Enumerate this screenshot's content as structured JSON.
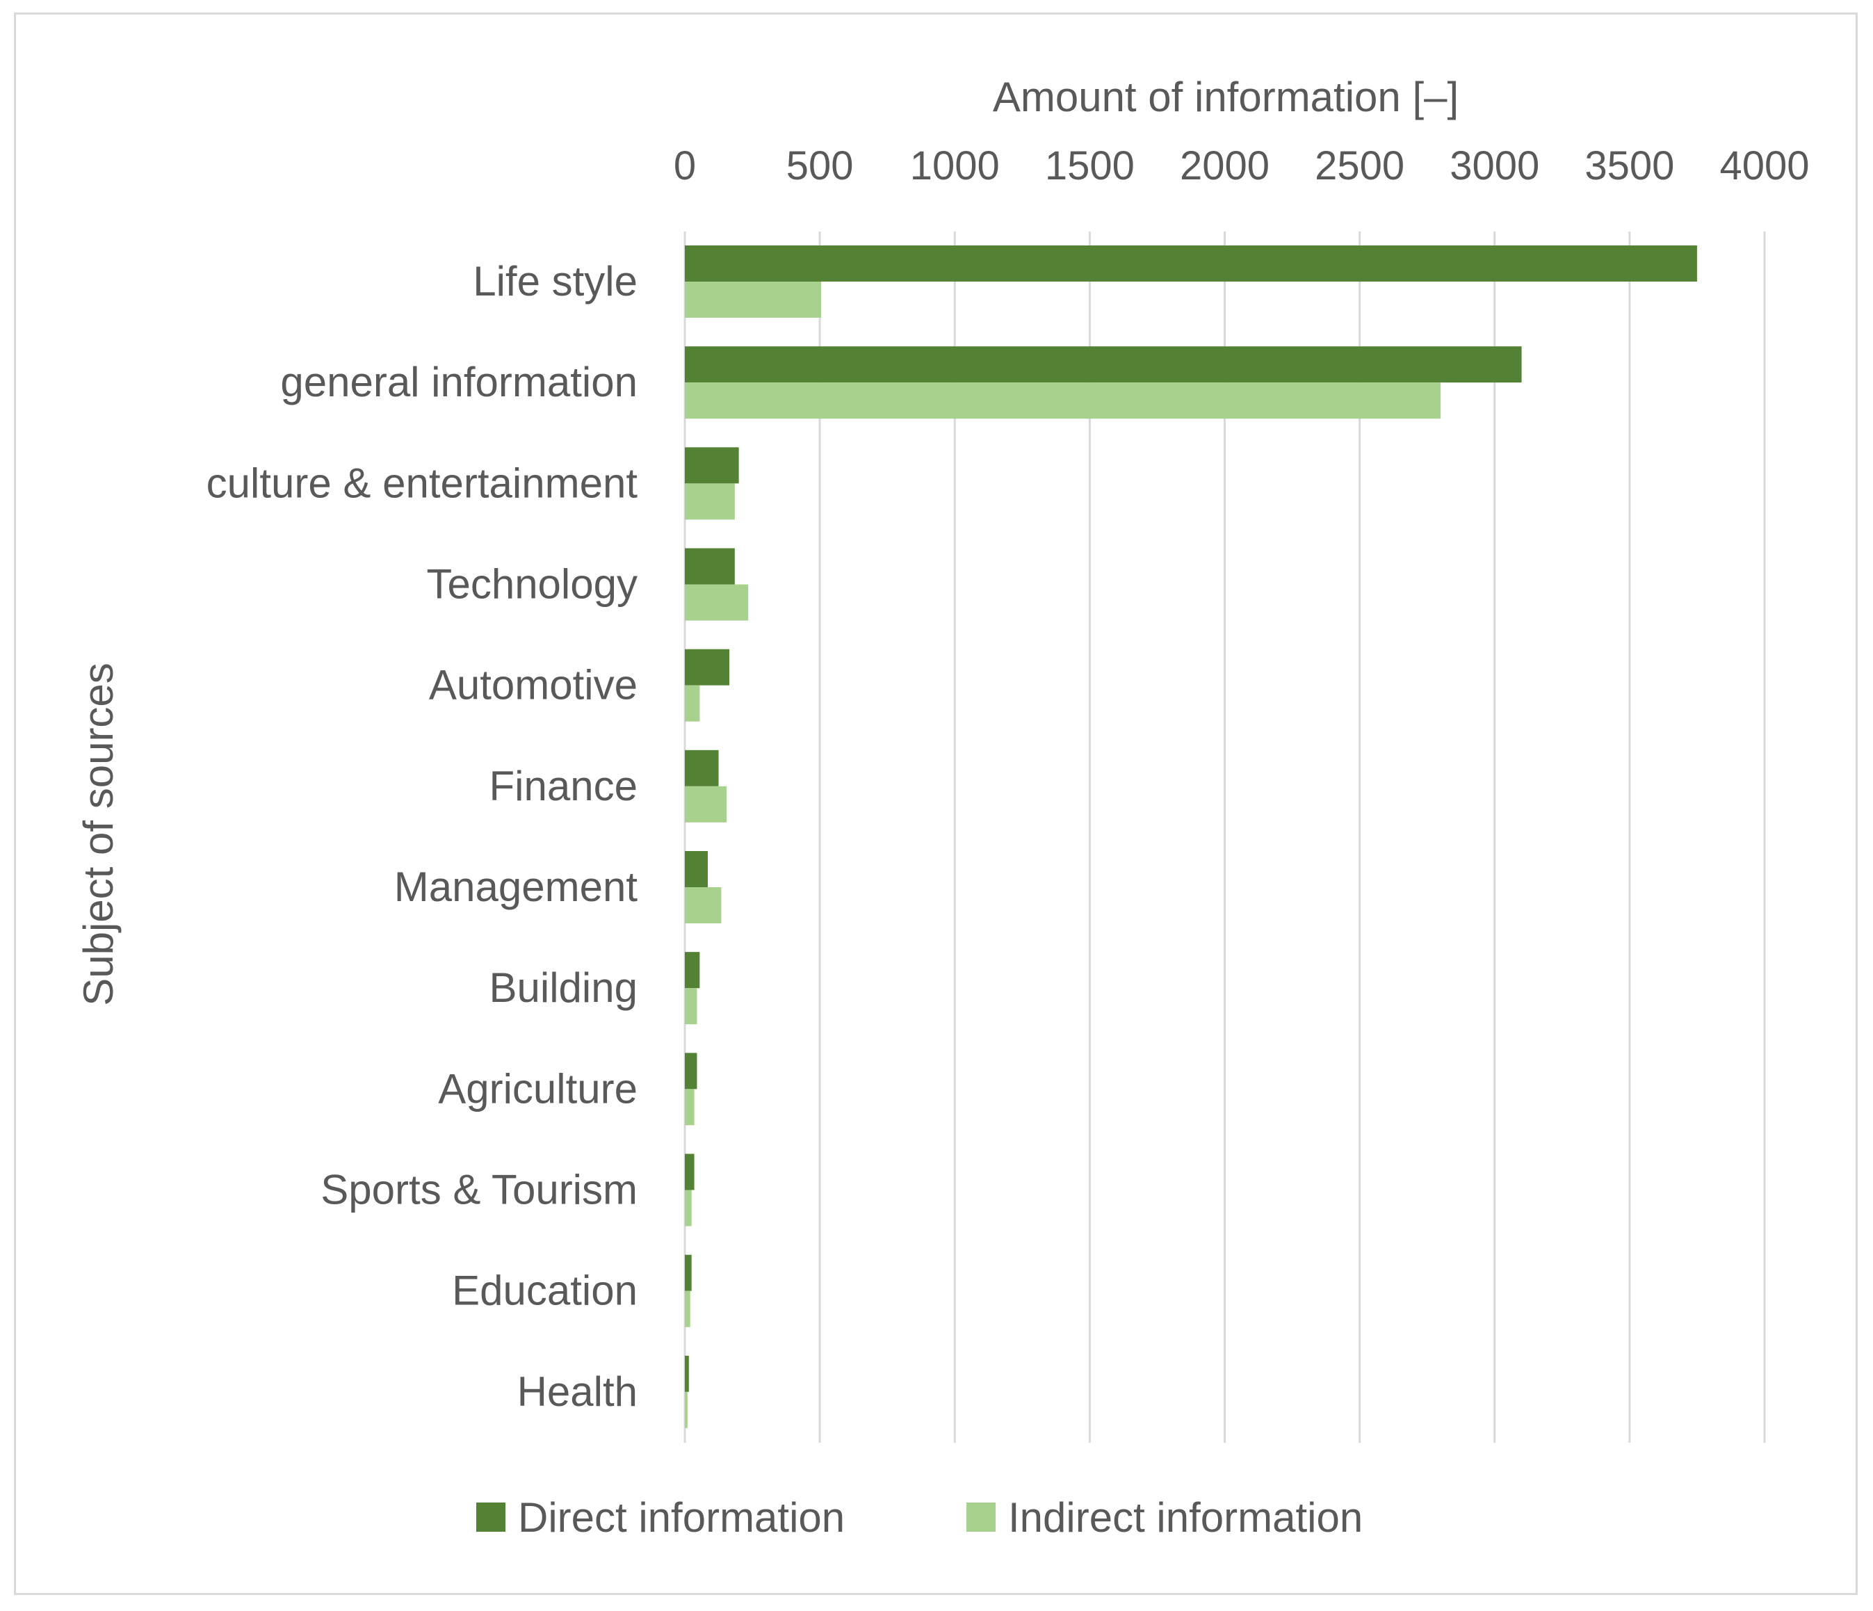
{
  "chart_data": {
    "type": "bar",
    "orientation": "horizontal",
    "title": "",
    "xlabel": "Amount of information [–]",
    "ylabel": "Subject of sources",
    "xlim": [
      0,
      4000
    ],
    "xticks": [
      "0",
      "500",
      "1000",
      "1500",
      "2000",
      "2500",
      "3000",
      "3500",
      "4000"
    ],
    "grid": true,
    "legend_position": "bottom",
    "categories": [
      "Life style",
      "general information",
      "culture & entertainment",
      "Technology",
      "Automotive",
      "Finance",
      "Management",
      "Building",
      "Agriculture",
      "Sports & Tourism",
      "Education",
      "Health"
    ],
    "series": [
      {
        "name": "Direct information",
        "color": "#548235",
        "values": [
          3750,
          3100,
          200,
          185,
          165,
          125,
          85,
          55,
          45,
          35,
          25,
          15
        ]
      },
      {
        "name": "Indirect information",
        "color": "#a9d18e",
        "values": [
          505,
          2800,
          185,
          235,
          55,
          155,
          135,
          45,
          35,
          25,
          20,
          10
        ]
      }
    ]
  }
}
